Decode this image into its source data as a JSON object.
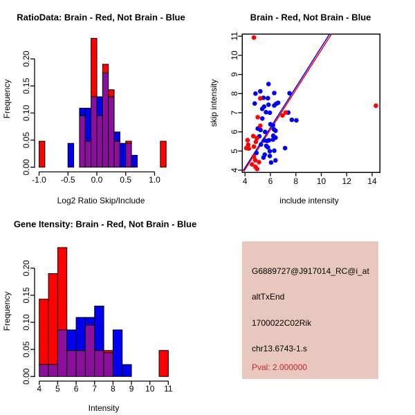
{
  "figure": {
    "background": "#ffffff",
    "colors": {
      "red": "#ff0000",
      "blue": "#0000ee",
      "purple": "#8a0f9b",
      "axis": "#000000",
      "info_bg": "#e8c7bf",
      "pval_red": "#cc2222"
    }
  },
  "chart_data": [
    {
      "type": "bar",
      "variant": "overlaid-histogram",
      "title": "RatioData: Brain - Red, Not Brain - Blue",
      "xlabel": "Log2 Ratio Skip/Include",
      "ylabel": "Frequency",
      "bin_width": 0.1,
      "xlim": [
        -1.05,
        1.25
      ],
      "ylim": [
        0,
        0.24
      ],
      "xticks": {
        "values": [
          -1.0,
          -0.5,
          0.0,
          0.5,
          1.0
        ],
        "labels": [
          "-1.0",
          "-0.5",
          "0.0",
          "0.5",
          "1.0"
        ]
      },
      "yticks": {
        "values": [
          0.0,
          0.05,
          0.1,
          0.15,
          0.2
        ],
        "labels": [
          "0.00",
          "0.05",
          "0.10",
          "0.15",
          "0.20"
        ]
      },
      "series_legend": {
        "red": "Brain",
        "blue": "Not Brain",
        "overlap": "purple"
      },
      "bars": [
        {
          "x0": -1.0,
          "red": 0.048,
          "blue": 0
        },
        {
          "x0": -0.5,
          "red": 0,
          "blue": 0.044
        },
        {
          "x0": -0.3,
          "red": 0.095,
          "blue": 0.109
        },
        {
          "x0": -0.2,
          "red": 0.048,
          "blue": 0.109
        },
        {
          "x0": -0.1,
          "red": 0.238,
          "blue": 0.13
        },
        {
          "x0": 0.0,
          "red": 0.095,
          "blue": 0.13
        },
        {
          "x0": 0.1,
          "red": 0.19,
          "blue": 0.174
        },
        {
          "x0": 0.2,
          "red": 0.143,
          "blue": 0.13
        },
        {
          "x0": 0.3,
          "red": 0.048,
          "blue": 0.065
        },
        {
          "x0": 0.4,
          "red": 0,
          "blue": 0.044
        },
        {
          "x0": 0.5,
          "red": 0.048,
          "blue": 0.044
        },
        {
          "x0": 0.6,
          "red": 0,
          "blue": 0.022
        },
        {
          "x0": 1.1,
          "red": 0.048,
          "blue": 0
        }
      ]
    },
    {
      "type": "scatter",
      "title": "Brain - Red, Not Brain - Blue",
      "xlabel": "include intensity",
      "ylabel": "skip intensity",
      "xlim": [
        3.8,
        14.6
      ],
      "ylim": [
        3.85,
        11.15
      ],
      "xticks": {
        "values": [
          4,
          6,
          8,
          10,
          12,
          14
        ],
        "labels": [
          "4",
          "6",
          "8",
          "10",
          "12",
          "14"
        ]
      },
      "yticks": {
        "values": [
          4,
          5,
          6,
          7,
          8,
          9,
          10,
          11
        ],
        "labels": [
          "4",
          "5",
          "6",
          "7",
          "8",
          "9",
          "10",
          "11"
        ]
      },
      "fit_lines": [
        {
          "name": "red-fit-line",
          "color": "#ff0000",
          "x1": 3.9,
          "y1": 3.93,
          "x2": 10.8,
          "y2": 11.11
        },
        {
          "name": "blue-fit-line",
          "color": "#0000ee",
          "x1": 3.85,
          "y1": 3.97,
          "x2": 10.65,
          "y2": 11.11
        }
      ],
      "red_points": [
        [
          4.7,
          10.93
        ],
        [
          14.3,
          7.37
        ],
        [
          5.2,
          7.75
        ],
        [
          5.0,
          6.77
        ],
        [
          7.2,
          7.01
        ],
        [
          6.95,
          6.86
        ],
        [
          5.2,
          6.32
        ],
        [
          4.65,
          5.78
        ],
        [
          4.2,
          5.57
        ],
        [
          4.25,
          5.33
        ],
        [
          4.1,
          5.15
        ],
        [
          4.3,
          5.13
        ],
        [
          4.7,
          5.23
        ],
        [
          4.85,
          5.48
        ],
        [
          4.93,
          5.67
        ],
        [
          4.7,
          4.7
        ],
        [
          4.8,
          4.52
        ],
        [
          4.55,
          4.3
        ],
        [
          4.82,
          4.17
        ],
        [
          5.1,
          4.42
        ],
        [
          4.95,
          4.06
        ]
      ],
      "blue_points": [
        [
          5.85,
          8.5
        ],
        [
          4.82,
          8.0
        ],
        [
          5.2,
          8.12
        ],
        [
          6.3,
          8.03
        ],
        [
          7.5,
          8.02
        ],
        [
          4.76,
          7.48
        ],
        [
          5.45,
          7.78
        ],
        [
          5.8,
          7.76
        ],
        [
          5.5,
          7.32
        ],
        [
          5.85,
          7.42
        ],
        [
          6.3,
          7.38
        ],
        [
          6.45,
          7.47
        ],
        [
          6.6,
          7.52
        ],
        [
          5.35,
          7.2
        ],
        [
          5.65,
          7.03
        ],
        [
          5.95,
          7.0
        ],
        [
          7.4,
          7.01
        ],
        [
          7.68,
          6.63
        ],
        [
          8.04,
          6.6
        ],
        [
          5.36,
          6.7
        ],
        [
          6.0,
          6.4
        ],
        [
          6.2,
          6.35
        ],
        [
          5.0,
          6.17
        ],
        [
          5.22,
          6.1
        ],
        [
          6.27,
          6.13
        ],
        [
          6.4,
          6.06
        ],
        [
          5.58,
          6.0
        ],
        [
          6.22,
          5.8
        ],
        [
          6.4,
          5.7
        ],
        [
          5.13,
          5.77
        ],
        [
          5.5,
          5.55
        ],
        [
          5.73,
          5.53
        ],
        [
          5.88,
          5.56
        ],
        [
          6.2,
          5.6
        ],
        [
          5.25,
          5.34
        ],
        [
          5.67,
          5.27
        ],
        [
          5.8,
          5.19
        ],
        [
          7.15,
          5.15
        ],
        [
          5.95,
          4.99
        ],
        [
          6.3,
          5.02
        ],
        [
          5.45,
          4.66
        ],
        [
          5.55,
          4.81
        ],
        [
          5.95,
          4.74
        ],
        [
          6.4,
          4.51
        ],
        [
          6.05,
          4.4
        ],
        [
          4.9,
          4.9
        ]
      ]
    },
    {
      "type": "bar",
      "variant": "overlaid-histogram",
      "title": "Gene Itensity: Brain - Red, Not Brain - Blue",
      "xlabel": "Intensity",
      "ylabel": "Frequency",
      "bin_width": 0.5,
      "xlim": [
        4,
        11
      ],
      "ylim": [
        0,
        0.24
      ],
      "xticks": {
        "values": [
          4,
          5,
          6,
          7,
          8,
          9,
          10,
          11
        ],
        "labels": [
          "4",
          "5",
          "6",
          "7",
          "8",
          "9",
          "10",
          "11"
        ]
      },
      "yticks": {
        "values": [
          0.0,
          0.05,
          0.1,
          0.15,
          0.2
        ],
        "labels": [
          "0.00",
          "0.05",
          "0.10",
          "0.15",
          "0.20"
        ]
      },
      "series_legend": {
        "red": "Brain",
        "blue": "Not Brain",
        "overlap": "purple"
      },
      "bars": [
        {
          "x0": 4.0,
          "red": 0.143,
          "blue": 0.022
        },
        {
          "x0": 4.5,
          "red": 0.19,
          "blue": 0.022
        },
        {
          "x0": 5.0,
          "red": 0.238,
          "blue": 0.086
        },
        {
          "x0": 5.5,
          "red": 0.048,
          "blue": 0.086
        },
        {
          "x0": 6.0,
          "red": 0.048,
          "blue": 0.109
        },
        {
          "x0": 6.5,
          "red": 0.095,
          "blue": 0.109
        },
        {
          "x0": 7.0,
          "red": 0.048,
          "blue": 0.13
        },
        {
          "x0": 7.5,
          "red": 0.048,
          "blue": 0.044
        },
        {
          "x0": 8.0,
          "red": 0,
          "blue": 0.086
        },
        {
          "x0": 8.5,
          "red": 0,
          "blue": 0.022
        },
        {
          "x0": 10.5,
          "red": 0.048,
          "blue": 0
        }
      ]
    }
  ],
  "info_panel": {
    "lines": [
      "G6889727@J917014_RC@i_at",
      "altTxEnd",
      "1700022C02Rik",
      "chr13.6743-1.s"
    ],
    "pval": "Pval: 2.000000"
  }
}
